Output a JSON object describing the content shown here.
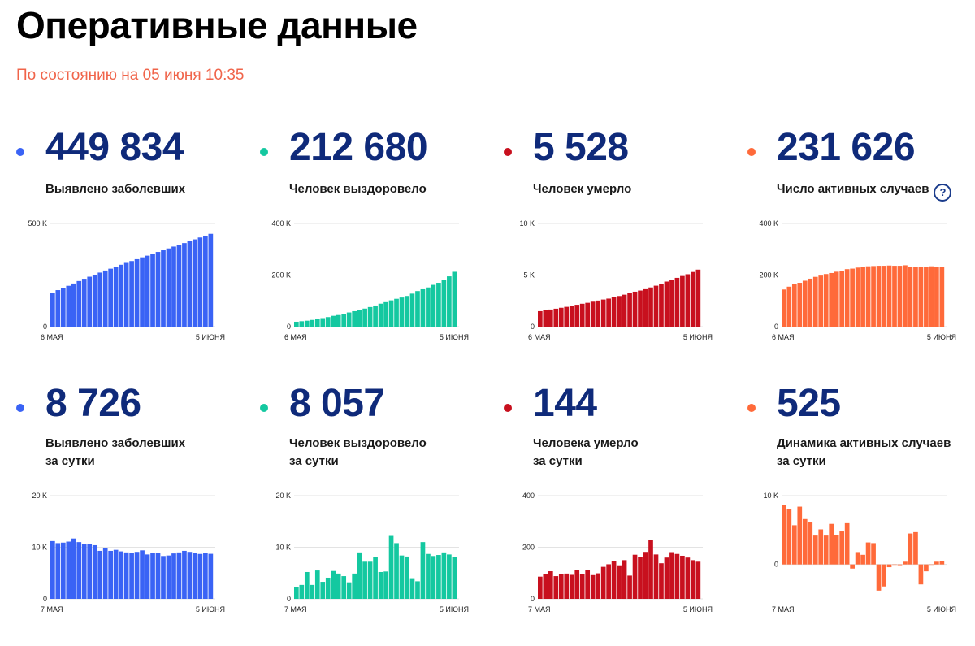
{
  "page": {
    "title": "Оперативные данные",
    "subtitle": "По состоянию на 05 июня 10:35"
  },
  "cards": [
    {
      "value": "449 834",
      "label_line1": "Выявлено заболевших",
      "label_line2": "",
      "color": "#3a63f5",
      "chart_data": {
        "type": "bar",
        "x_start": "6 МАЯ",
        "x_end": "5 ИЮНЯ",
        "yticks": [
          {
            "v": 0,
            "t": "0"
          },
          {
            "v": 500000,
            "t": "500 K"
          }
        ],
        "ylim": [
          0,
          500000
        ],
        "values": [
          165000,
          177000,
          187000,
          198000,
          209000,
          221000,
          232000,
          242000,
          252000,
          262000,
          272000,
          281000,
          291000,
          300000,
          309000,
          318000,
          327000,
          336000,
          344000,
          353000,
          362000,
          370000,
          379000,
          388000,
          396000,
          405000,
          414000,
          423000,
          432000,
          441000,
          449834
        ]
      }
    },
    {
      "value": "212 680",
      "label_line1": "Человек выздоровело",
      "label_line2": "",
      "color": "#14c8a0",
      "chart_data": {
        "type": "bar",
        "x_start": "6 МАЯ",
        "x_end": "5 ИЮНЯ",
        "yticks": [
          {
            "v": 0,
            "t": "0"
          },
          {
            "v": 200000,
            "t": "200 K"
          },
          {
            "v": 400000,
            "t": "400 K"
          }
        ],
        "ylim": [
          0,
          400000
        ],
        "values": [
          19000,
          21000,
          23000,
          26000,
          29000,
          33000,
          37000,
          42000,
          45000,
          50000,
          55000,
          60000,
          64000,
          70000,
          76000,
          82000,
          89000,
          95000,
          102000,
          108000,
          113000,
          119000,
          128000,
          138000,
          145000,
          152000,
          162000,
          170000,
          182000,
          195000,
          212680
        ]
      }
    },
    {
      "value": "5 528",
      "label_line1": "Человек умерло",
      "label_line2": "",
      "color": "#c8101e",
      "chart_data": {
        "type": "bar",
        "x_start": "6 МАЯ",
        "x_end": "5 ИЮНЯ",
        "yticks": [
          {
            "v": 0,
            "t": "0"
          },
          {
            "v": 5000,
            "t": "5 K"
          },
          {
            "v": 10000,
            "t": "10 K"
          }
        ],
        "ylim": [
          0,
          10000
        ],
        "values": [
          1500,
          1580,
          1660,
          1740,
          1830,
          1920,
          2010,
          2120,
          2220,
          2310,
          2420,
          2530,
          2630,
          2720,
          2840,
          2970,
          3100,
          3240,
          3390,
          3500,
          3630,
          3800,
          3970,
          4130,
          4370,
          4560,
          4730,
          4910,
          5080,
          5300,
          5528
        ]
      }
    },
    {
      "value": "231 626",
      "label_line1": "Число активных случаев",
      "label_line2": "",
      "help": "?",
      "color": "#ff6a3a",
      "chart_data": {
        "type": "bar",
        "x_start": "6 МАЯ",
        "x_end": "5 ИЮНЯ",
        "yticks": [
          {
            "v": 0,
            "t": "0"
          },
          {
            "v": 200000,
            "t": "200 K"
          },
          {
            "v": 400000,
            "t": "400 K"
          }
        ],
        "ylim": [
          0,
          400000
        ],
        "values": [
          144000,
          155000,
          164000,
          170000,
          178000,
          186000,
          193000,
          198000,
          204000,
          208000,
          213000,
          217000,
          223000,
          225000,
          229000,
          232000,
          234000,
          235000,
          236000,
          236000,
          237000,
          236000,
          236000,
          238000,
          233000,
          232000,
          232000,
          233000,
          234000,
          232000,
          231626
        ]
      }
    },
    {
      "value": "8 726",
      "label_line1": "Выявлено заболевших",
      "label_line2": "за сутки",
      "color": "#3a63f5",
      "chart_data": {
        "type": "bar",
        "x_start": "7 МАЯ",
        "x_end": "5 ИЮНЯ",
        "yticks": [
          {
            "v": 0,
            "t": "0"
          },
          {
            "v": 10000,
            "t": "10 K"
          },
          {
            "v": 20000,
            "t": "20 K"
          }
        ],
        "ylim": [
          0,
          20000
        ],
        "values": [
          11200,
          10800,
          10900,
          11100,
          11700,
          11000,
          10600,
          10600,
          10400,
          9300,
          9900,
          9300,
          9500,
          9200,
          9000,
          8900,
          9100,
          9400,
          8600,
          8900,
          8900,
          8300,
          8400,
          8800,
          9000,
          9300,
          9100,
          8900,
          8700,
          8900,
          8726
        ]
      }
    },
    {
      "value": "8 057",
      "label_line1": "Человек выздоровело",
      "label_line2": "за сутки",
      "color": "#14c8a0",
      "chart_data": {
        "type": "bar",
        "x_start": "7 МАЯ",
        "x_end": "5 ИЮНЯ",
        "yticks": [
          {
            "v": 0,
            "t": "0"
          },
          {
            "v": 10000,
            "t": "10 K"
          },
          {
            "v": 20000,
            "t": "20 K"
          }
        ],
        "ylim": [
          0,
          20000
        ],
        "values": [
          2300,
          2700,
          5200,
          2700,
          5500,
          3300,
          4100,
          5400,
          4900,
          4400,
          3200,
          4900,
          9000,
          7200,
          7200,
          8100,
          5200,
          5300,
          12200,
          10800,
          8400,
          8200,
          4000,
          3400,
          11000,
          8700,
          8300,
          8500,
          9000,
          8600,
          8057
        ]
      }
    },
    {
      "value": "144",
      "label_line1": "Человека умерло",
      "label_line2": "за сутки",
      "color": "#c8101e",
      "chart_data": {
        "type": "bar",
        "x_start": "7 МАЯ",
        "x_end": "5 ИЮНЯ",
        "yticks": [
          {
            "v": 0,
            "t": "0"
          },
          {
            "v": 200,
            "t": "200"
          },
          {
            "v": 400,
            "t": "400"
          }
        ],
        "ylim": [
          0,
          400
        ],
        "values": [
          86,
          96,
          107,
          88,
          96,
          98,
          93,
          113,
          96,
          113,
          92,
          99,
          124,
          134,
          147,
          130,
          150,
          90,
          171,
          162,
          182,
          229,
          172,
          138,
          160,
          181,
          174,
          167,
          160,
          150,
          144
        ]
      }
    },
    {
      "value": "525",
      "label_line1": "Динамика активных случаев",
      "label_line2": "за сутки",
      "color": "#ff6a3a",
      "chart_data": {
        "type": "bar",
        "x_start": "7 МАЯ",
        "x_end": "5 ИЮНЯ",
        "yticks": [
          {
            "v": 0,
            "t": "0"
          },
          {
            "v": 10000,
            "t": "10 K"
          }
        ],
        "ylim": [
          -5000,
          10000
        ],
        "values": [
          8700,
          8100,
          5700,
          8400,
          6600,
          6100,
          4200,
          5100,
          4200,
          5900,
          4300,
          4800,
          6000,
          -600,
          1800,
          1400,
          3200,
          3100,
          -3800,
          -3200,
          -400,
          0,
          -100,
          400,
          4500,
          4700,
          -2900,
          -1000,
          0,
          400,
          525
        ]
      }
    }
  ]
}
